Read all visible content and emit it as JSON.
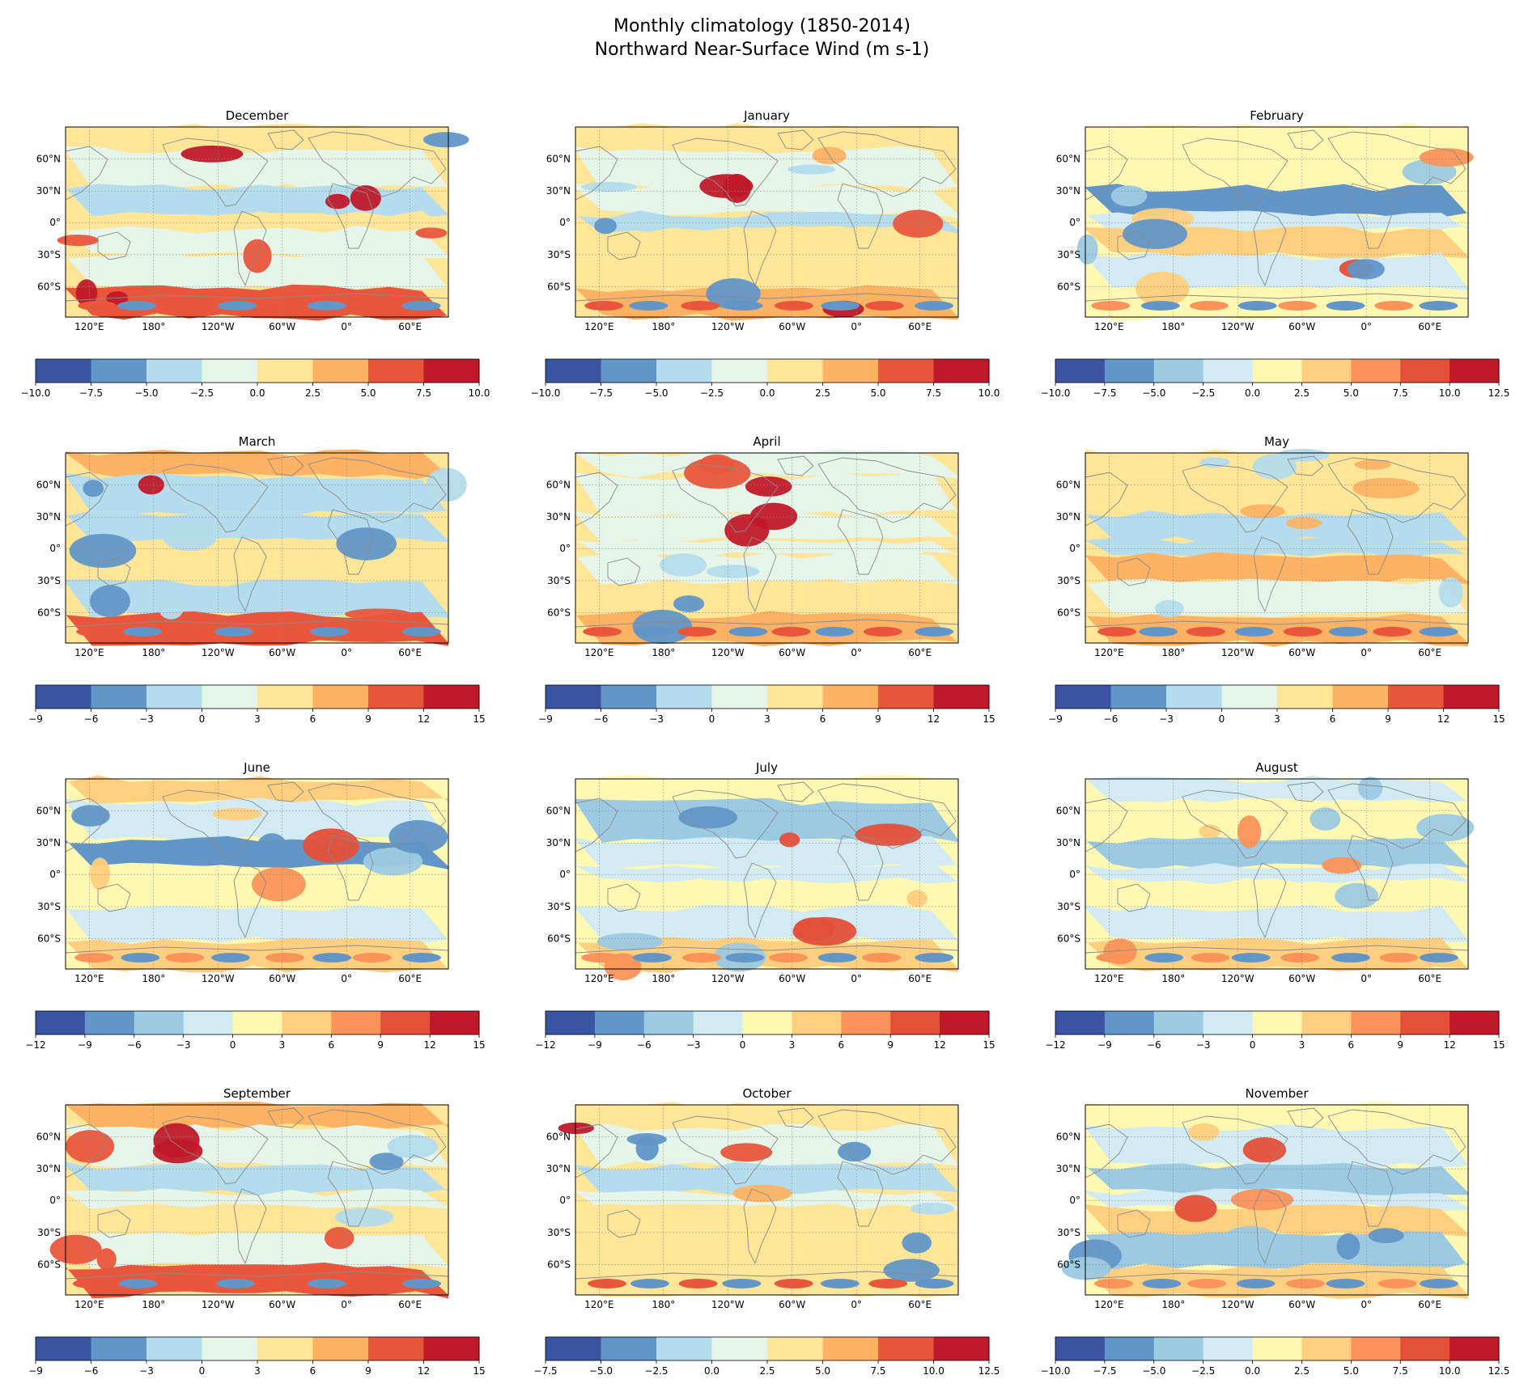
{
  "figure": {
    "title_line1": "Monthly climatology (1850-2014)",
    "title_line2": "Northward Near-Surface Wind (m s-1)"
  },
  "colors": {
    "land_outline": "#8a8a8a",
    "ocean_neutral": "#e6f5ea"
  },
  "map_axes": {
    "lat_ticks": [
      "60°N",
      "30°N",
      "0°",
      "30°S",
      "60°S"
    ],
    "lon_ticks": [
      "120°E",
      "180°",
      "120°W",
      "60°W",
      "0°",
      "60°E"
    ]
  },
  "chart_data": [
    {
      "type": "heatmap",
      "title": "December",
      "colorbar_ticks": [
        "−10.0",
        "−7.5",
        "−5.0",
        "−2.5",
        "0.0",
        "2.5",
        "5.0",
        "7.5",
        "10.0"
      ],
      "colorbar_colors": [
        "#3b53a3",
        "#6296c8",
        "#b4dcec",
        "#e6f5ea",
        "#fee597",
        "#fdb264",
        "#e9563c",
        "#c0192a"
      ]
    },
    {
      "type": "heatmap",
      "title": "January",
      "colorbar_ticks": [
        "−10.0",
        "−7.5",
        "−5.0",
        "−2.5",
        "0.0",
        "2.5",
        "5.0",
        "7.5",
        "10.0"
      ],
      "colorbar_colors": [
        "#3b53a3",
        "#6296c8",
        "#b4dcec",
        "#e6f5ea",
        "#fee597",
        "#fdb264",
        "#e9563c",
        "#c0192a"
      ]
    },
    {
      "type": "heatmap",
      "title": "February",
      "colorbar_ticks": [
        "−10.0",
        "−7.5",
        "−5.0",
        "−2.5",
        "0.0",
        "2.5",
        "5.0",
        "7.5",
        "10.0",
        "12.5"
      ],
      "colorbar_colors": [
        "#3b53a3",
        "#6296c8",
        "#9ccae2",
        "#d2ebf3",
        "#fff8b2",
        "#fecf7e",
        "#fb935a",
        "#e44f39",
        "#c0192a"
      ]
    },
    {
      "type": "heatmap",
      "title": "March",
      "colorbar_ticks": [
        "−9",
        "−6",
        "−3",
        "0",
        "3",
        "6",
        "9",
        "12",
        "15"
      ],
      "colorbar_colors": [
        "#3b53a3",
        "#6296c8",
        "#b4dcec",
        "#e6f5ea",
        "#fee597",
        "#fdb264",
        "#e9563c",
        "#c0192a"
      ]
    },
    {
      "type": "heatmap",
      "title": "April",
      "colorbar_ticks": [
        "−9",
        "−6",
        "−3",
        "0",
        "3",
        "6",
        "9",
        "12",
        "15"
      ],
      "colorbar_colors": [
        "#3b53a3",
        "#6296c8",
        "#b4dcec",
        "#e6f5ea",
        "#fee597",
        "#fdb264",
        "#e9563c",
        "#c0192a"
      ]
    },
    {
      "type": "heatmap",
      "title": "May",
      "colorbar_ticks": [
        "−9",
        "−6",
        "−3",
        "0",
        "3",
        "6",
        "9",
        "12",
        "15"
      ],
      "colorbar_colors": [
        "#3b53a3",
        "#6296c8",
        "#b4dcec",
        "#e6f5ea",
        "#fee597",
        "#fdb264",
        "#e9563c",
        "#c0192a"
      ]
    },
    {
      "type": "heatmap",
      "title": "June",
      "colorbar_ticks": [
        "−12",
        "−9",
        "−6",
        "−3",
        "0",
        "3",
        "6",
        "9",
        "12",
        "15"
      ],
      "colorbar_colors": [
        "#3b53a3",
        "#6296c8",
        "#9ccae2",
        "#d2ebf3",
        "#fff8b2",
        "#fecf7e",
        "#fb935a",
        "#e44f39",
        "#c0192a"
      ]
    },
    {
      "type": "heatmap",
      "title": "July",
      "colorbar_ticks": [
        "−12",
        "−9",
        "−6",
        "−3",
        "0",
        "3",
        "6",
        "9",
        "12",
        "15"
      ],
      "colorbar_colors": [
        "#3b53a3",
        "#6296c8",
        "#9ccae2",
        "#d2ebf3",
        "#fff8b2",
        "#fecf7e",
        "#fb935a",
        "#e44f39",
        "#c0192a"
      ]
    },
    {
      "type": "heatmap",
      "title": "August",
      "colorbar_ticks": [
        "−12",
        "−9",
        "−6",
        "−3",
        "0",
        "3",
        "6",
        "9",
        "12",
        "15"
      ],
      "colorbar_colors": [
        "#3b53a3",
        "#6296c8",
        "#9ccae2",
        "#d2ebf3",
        "#fff8b2",
        "#fecf7e",
        "#fb935a",
        "#e44f39",
        "#c0192a"
      ]
    },
    {
      "type": "heatmap",
      "title": "September",
      "colorbar_ticks": [
        "−9",
        "−6",
        "−3",
        "0",
        "3",
        "6",
        "9",
        "12",
        "15"
      ],
      "colorbar_colors": [
        "#3b53a3",
        "#6296c8",
        "#b4dcec",
        "#e6f5ea",
        "#fee597",
        "#fdb264",
        "#e9563c",
        "#c0192a"
      ]
    },
    {
      "type": "heatmap",
      "title": "October",
      "colorbar_ticks": [
        "−7.5",
        "−5.0",
        "−2.5",
        "0.0",
        "2.5",
        "5.0",
        "7.5",
        "10.0",
        "12.5"
      ],
      "colorbar_colors": [
        "#3b53a3",
        "#6296c8",
        "#b4dcec",
        "#e6f5ea",
        "#fee597",
        "#fdb264",
        "#e9563c",
        "#c0192a"
      ]
    },
    {
      "type": "heatmap",
      "title": "November",
      "colorbar_ticks": [
        "−10.0",
        "−7.5",
        "−5.0",
        "−2.5",
        "0.0",
        "2.5",
        "5.0",
        "7.5",
        "10.0",
        "12.5"
      ],
      "colorbar_colors": [
        "#3b53a3",
        "#6296c8",
        "#9ccae2",
        "#d2ebf3",
        "#fff8b2",
        "#fecf7e",
        "#fb935a",
        "#e44f39",
        "#c0192a"
      ]
    }
  ]
}
